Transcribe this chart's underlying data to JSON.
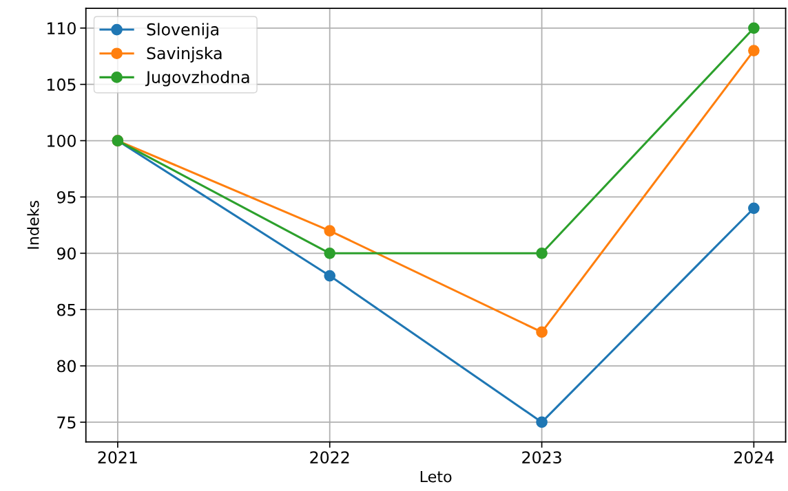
{
  "chart_data": {
    "type": "line",
    "xlabel": "Leto",
    "ylabel": "Indeks",
    "x": [
      2021,
      2022,
      2023,
      2024
    ],
    "series": [
      {
        "name": "Slovenija",
        "color": "#1f77b4",
        "values": [
          100,
          88,
          75,
          94
        ]
      },
      {
        "name": "Savinjska",
        "color": "#ff7f0e",
        "values": [
          100,
          92,
          83,
          108
        ]
      },
      {
        "name": "Jugovzhodna",
        "color": "#2ca02c",
        "values": [
          100,
          90,
          90,
          110
        ]
      }
    ],
    "xlim": [
      2020.85,
      2024.15
    ],
    "xticks": [
      2021,
      2022,
      2023,
      2024
    ],
    "ylim": [
      73.25,
      111.75
    ],
    "yticks": [
      75,
      80,
      85,
      90,
      95,
      100,
      105,
      110
    ],
    "grid": true,
    "legend": "top left",
    "marker": "circle",
    "line_style": "solid"
  }
}
